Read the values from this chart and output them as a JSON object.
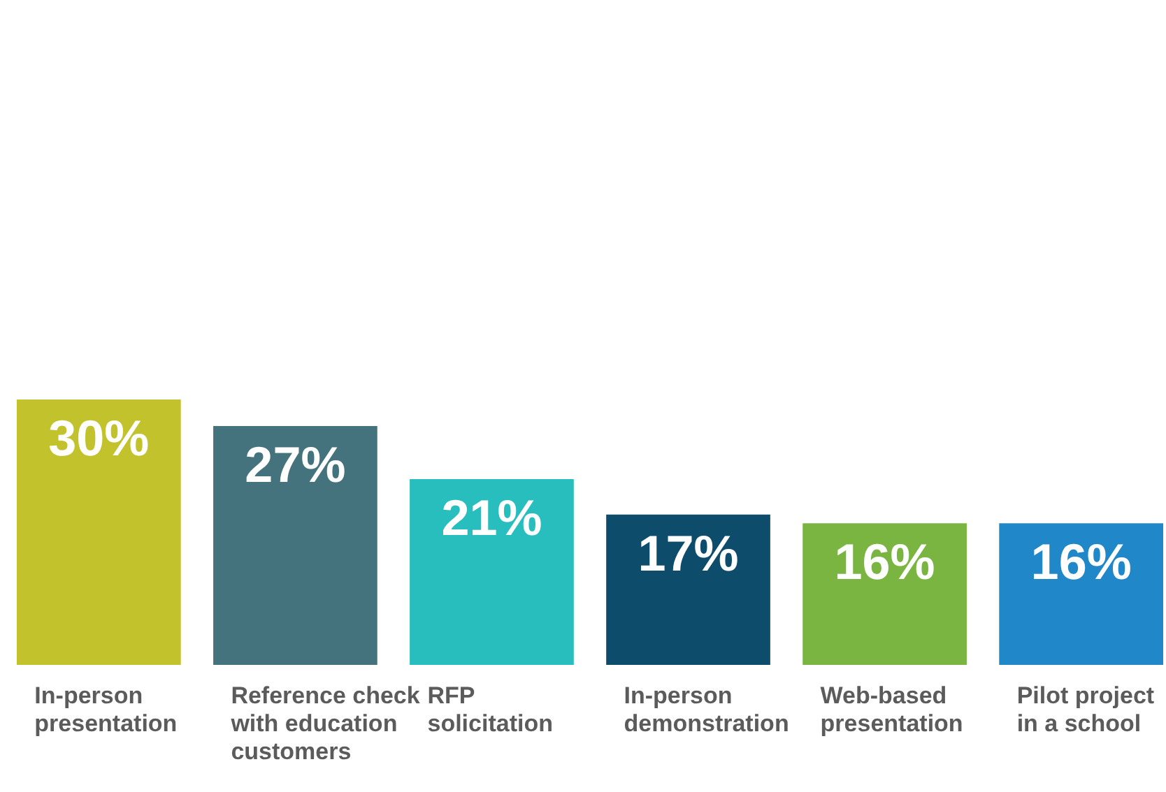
{
  "chart_data": {
    "type": "bar",
    "categories": [
      "In-person presentation",
      "Reference check with education customers",
      "RFP solicitation",
      "In-person demonstration",
      "Web-based presentation",
      "Pilot project in a school"
    ],
    "values": [
      30,
      27,
      21,
      17,
      16,
      16
    ],
    "colors": [
      "#c2c22c",
      "#45737d",
      "#28bebe",
      "#0e4c6c",
      "#7ab542",
      "#2087c9"
    ],
    "value_labels": [
      "30%",
      "27%",
      "21%",
      "17%",
      "16%",
      "16%"
    ]
  }
}
